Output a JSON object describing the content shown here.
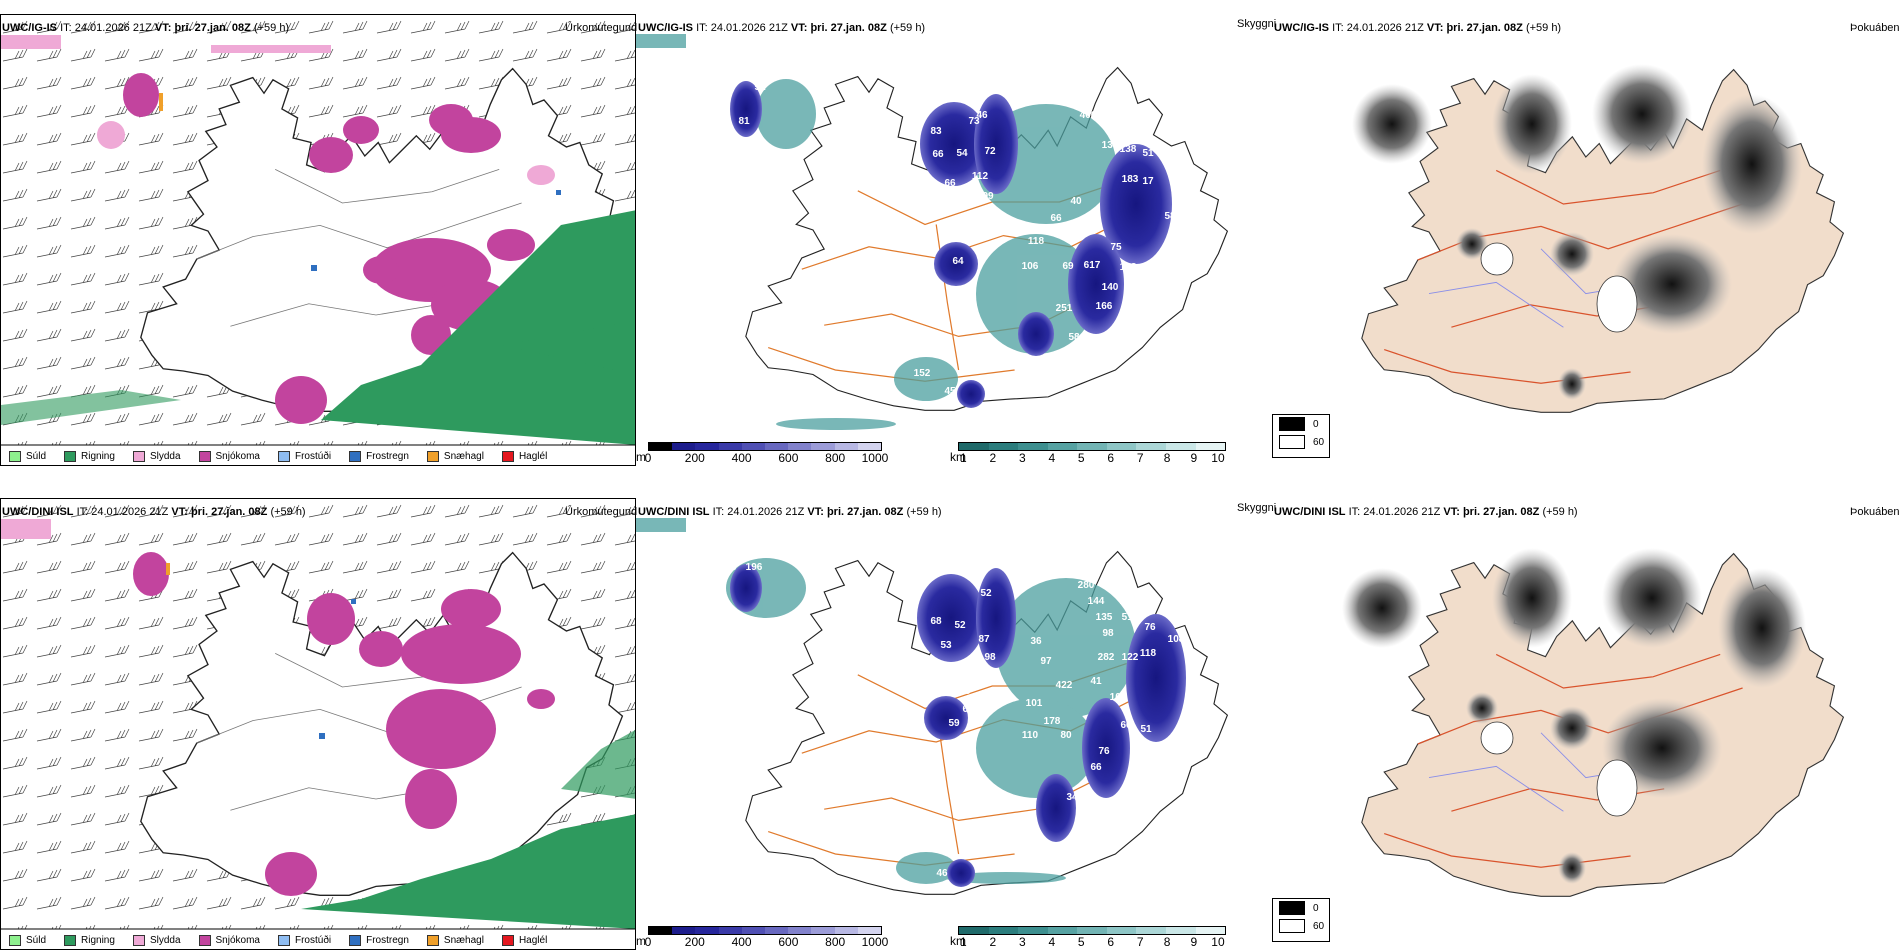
{
  "header": {
    "it_label": "IT:",
    "it_value": "24.01.2026 21Z",
    "vt_label": "VT:",
    "vt_value": "þri. 27.jan. 08Z",
    "lead": "(+59 h)"
  },
  "rows": [
    {
      "model": "UWC/IG-IS",
      "precip_title": "Úrkomutegund",
      "vis_title": "Skyggni",
      "fog_title": "Þokuábendi",
      "snow_labels": [
        "81",
        "51",
        "83",
        "66",
        "54",
        "66",
        "112",
        "73",
        "99",
        "72",
        "46",
        "406",
        "134",
        "130",
        "138",
        "51",
        "183",
        "17",
        "64",
        "83",
        "58",
        "50",
        "66",
        "40",
        "118",
        "106",
        "69",
        "617",
        "75",
        "108",
        "40",
        "61",
        "140",
        "166",
        "11",
        "251",
        "58",
        "64",
        "152",
        "45"
      ]
    },
    {
      "model": "UWC/DINI ISL",
      "precip_title": "Úrkomutegund",
      "vis_title": "Skyggni",
      "fog_title": "Þokuábendi",
      "snow_labels": [
        "173",
        "196",
        "52",
        "68",
        "52",
        "53",
        "87",
        "98",
        "280",
        "144",
        "210",
        "135",
        "514",
        "98",
        "76",
        "108",
        "36",
        "97",
        "282",
        "122",
        "118",
        "422",
        "41",
        "208",
        "60",
        "59",
        "116",
        "101",
        "178",
        "110",
        "80",
        "104",
        "66",
        "76",
        "51",
        "66",
        "34",
        "46"
      ]
    }
  ],
  "precip_legend": [
    {
      "label": "Súld",
      "color": "#8ef08e"
    },
    {
      "label": "Rigning",
      "color": "#2e9a5e"
    },
    {
      "label": "Slydda",
      "color": "#efa9d6"
    },
    {
      "label": "Snjókoma",
      "color": "#c2449e"
    },
    {
      "label": "Frostúði",
      "color": "#8fbdf2"
    },
    {
      "label": "Frostregn",
      "color": "#2f6fc0"
    },
    {
      "label": "Snæhagl",
      "color": "#f0a02a"
    },
    {
      "label": "Haglél",
      "color": "#e4171f"
    }
  ],
  "cbar_m": {
    "unit": "m",
    "ticks": [
      "0",
      "200",
      "400",
      "600",
      "800",
      "1000"
    ],
    "colors": [
      "#000000",
      "#1c1c8c",
      "#26269c",
      "#3a3aa8",
      "#5050b4",
      "#6868c0",
      "#8282cc",
      "#9c9cd8",
      "#b8b8e4",
      "#d4d4ef"
    ]
  },
  "cbar_km": {
    "unit": "km",
    "ticks": [
      "1",
      "2",
      "3",
      "4",
      "5",
      "6",
      "7",
      "8",
      "9",
      "10"
    ],
    "colors": [
      "#1f6a6a",
      "#2b7d7d",
      "#3d8f8f",
      "#56a2a2",
      "#72b4b4",
      "#8ec6c6",
      "#acd7d7",
      "#cae7e7",
      "#e6f4f4"
    ]
  },
  "fog_legend": [
    {
      "label": "0",
      "color": "#000000"
    },
    {
      "label": "60",
      "color": "#ffffff"
    }
  ]
}
